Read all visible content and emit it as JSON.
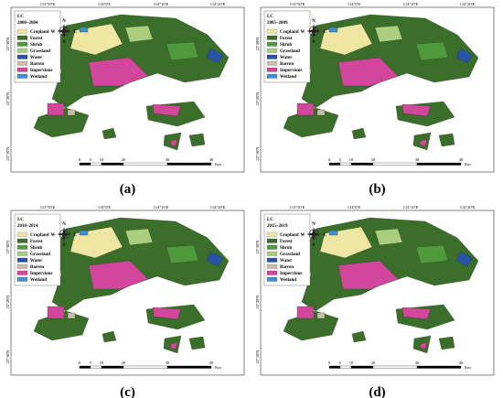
{
  "coordinates": {
    "top": [
      "113°50'E",
      "114°0'E",
      "114°10'E",
      "114°20'E"
    ],
    "left": [
      "22°30'N",
      "22°20'N",
      "22°10'N"
    ]
  },
  "compass": {
    "north": "N",
    "south": "S",
    "west": "W",
    "east": "E"
  },
  "legend": {
    "title": "LC",
    "items": [
      {
        "label": "Cropland",
        "color": "#efe6a4"
      },
      {
        "label": "Forest",
        "color": "#3b6e2a"
      },
      {
        "label": "Shrub",
        "color": "#4f9a3c"
      },
      {
        "label": "Grassland",
        "color": "#a9cf7e"
      },
      {
        "label": "Water",
        "color": "#2754a8"
      },
      {
        "label": "Barren",
        "color": "#c9bfa8"
      },
      {
        "label": "Impervious",
        "color": "#d2469b"
      },
      {
        "label": "Wetland",
        "color": "#3d8fd8"
      }
    ]
  },
  "scale_bar": {
    "ticks": [
      "0",
      "5",
      "10",
      "20",
      "30",
      "40"
    ],
    "unit": "Km"
  },
  "panels": [
    {
      "period": "2000–2004",
      "caption": "(a)"
    },
    {
      "period": "2005–2009",
      "caption": "(b)"
    },
    {
      "period": "2010–2014",
      "caption": "(c)"
    },
    {
      "period": "2015–2019",
      "caption": "(d)"
    }
  ]
}
